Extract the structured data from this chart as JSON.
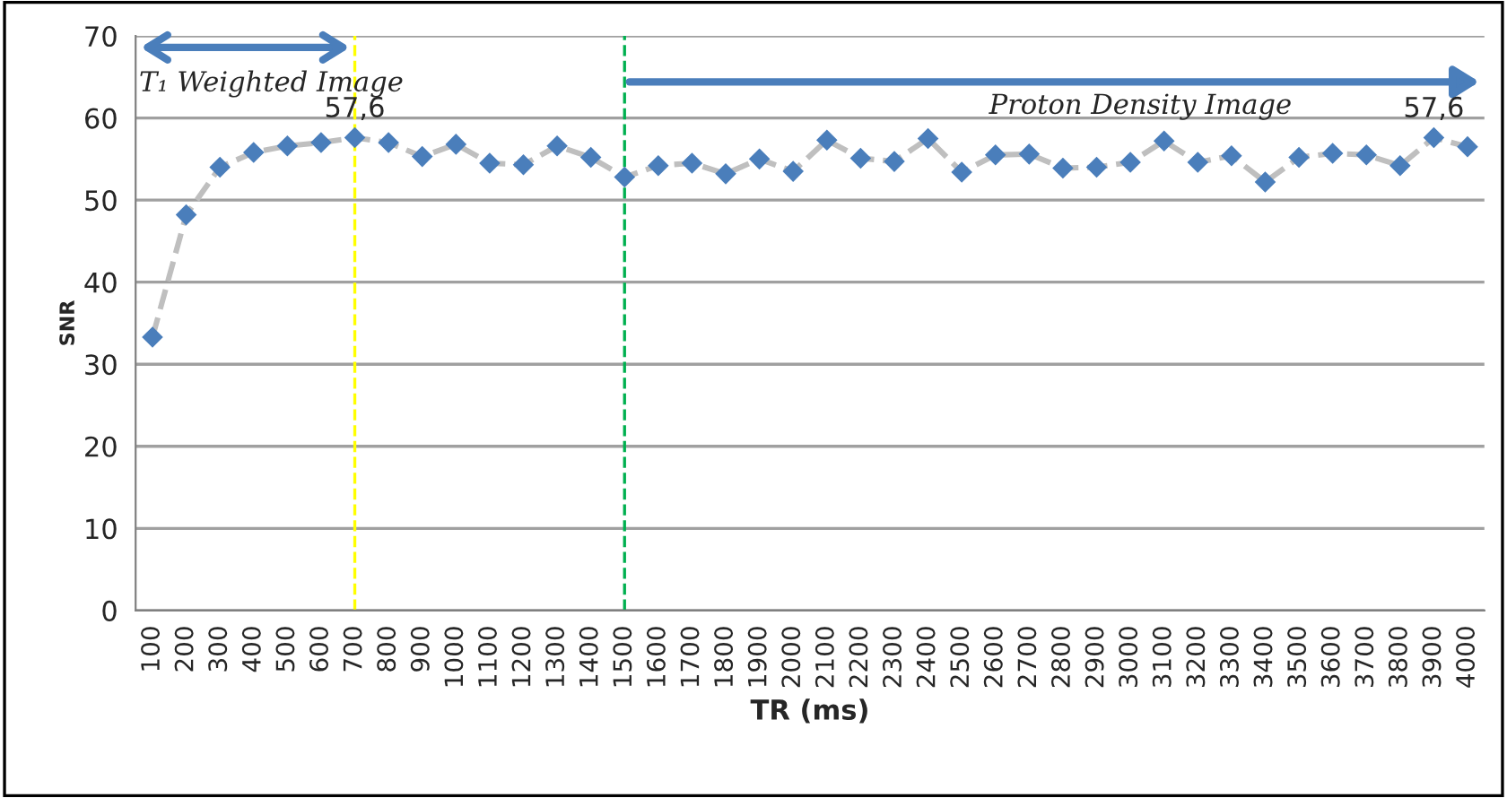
{
  "chart_data": {
    "type": "line",
    "xlabel": "TR (ms)",
    "ylabel": "SNR",
    "categories": [
      "100",
      "200",
      "300",
      "400",
      "500",
      "600",
      "700",
      "800",
      "900",
      "1000",
      "1100",
      "1200",
      "1300",
      "1400",
      "1500",
      "1600",
      "1700",
      "1800",
      "1900",
      "2000",
      "2100",
      "2200",
      "2300",
      "2400",
      "2500",
      "2600",
      "2700",
      "2800",
      "2900",
      "3000",
      "3100",
      "3200",
      "3300",
      "3400",
      "3500",
      "3600",
      "3700",
      "3800",
      "3900",
      "4000"
    ],
    "series": [
      {
        "color": "#4a7ebb",
        "values": [
          33.3,
          48.2,
          54.0,
          55.8,
          56.6,
          57.0,
          57.6,
          57.0,
          55.3,
          56.8,
          54.5,
          54.3,
          56.6,
          55.2,
          52.8,
          54.2,
          54.5,
          53.2,
          55.0,
          53.5,
          57.3,
          55.1,
          54.7,
          57.5,
          53.4,
          55.5,
          55.6,
          53.9,
          54.0,
          54.6,
          57.2,
          54.6,
          55.4,
          52.2,
          55.2,
          55.7,
          55.5,
          54.2,
          57.6,
          56.5
        ],
        "value_labels": [
          null,
          null,
          null,
          null,
          null,
          null,
          "57,6",
          null,
          null,
          null,
          null,
          null,
          null,
          null,
          null,
          null,
          null,
          null,
          null,
          null,
          null,
          null,
          null,
          null,
          null,
          null,
          null,
          null,
          null,
          null,
          null,
          null,
          null,
          null,
          null,
          null,
          null,
          null,
          "57,6",
          null
        ]
      }
    ],
    "ylim": [
      0,
      70
    ],
    "yticks": [
      0,
      10,
      20,
      30,
      40,
      50,
      60,
      70
    ],
    "grid": "y",
    "marker": "diamond",
    "line_style": "dashed",
    "ref_lines": [
      {
        "axis": "x",
        "value": "700",
        "color": "#ffff00",
        "line_style": "dashed"
      },
      {
        "axis": "x",
        "value": "1500",
        "color": "#00b050",
        "line_style": "dashed"
      }
    ],
    "annotations": [
      "T₁ Weighted Image",
      "Proton Density Image"
    ]
  }
}
